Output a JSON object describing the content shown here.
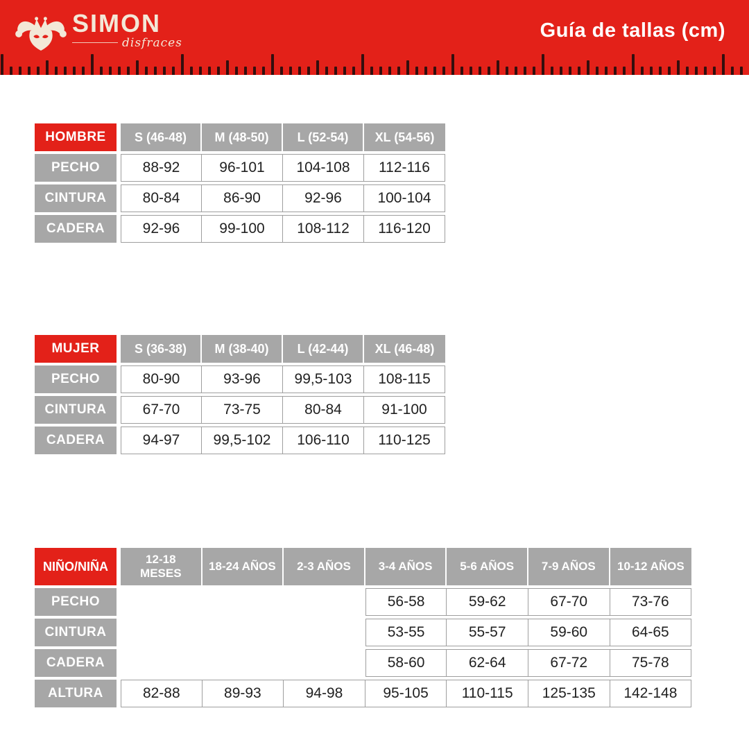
{
  "header": {
    "brand": {
      "name": "SIMON",
      "tagline": "disfraces"
    },
    "title": "Guía de tallas (cm)"
  },
  "colors": {
    "brand_red": "#e32119",
    "header_gray": "#a7a7a7",
    "cell_border": "#9e9e9e",
    "logo_cream": "#f3e8d7",
    "ruler_tick": "#330f0e",
    "data_text": "#212121"
  },
  "tables": [
    {
      "label": "HOMBRE",
      "columns": [
        "S (46-48)",
        "M (48-50)",
        "L (52-54)",
        "XL (54-56)"
      ],
      "rows": [
        {
          "label": "PECHO",
          "values": [
            "88-92",
            "96-101",
            "104-108",
            "112-116"
          ]
        },
        {
          "label": "CINTURA",
          "values": [
            "80-84",
            "86-90",
            "92-96",
            "100-104"
          ]
        },
        {
          "label": "CADERA",
          "values": [
            "92-96",
            "99-100",
            "108-112",
            "116-120"
          ]
        }
      ]
    },
    {
      "label": "MUJER",
      "columns": [
        "S (36-38)",
        "M (38-40)",
        "L (42-44)",
        "XL (46-48)"
      ],
      "rows": [
        {
          "label": "PECHO",
          "values": [
            "80-90",
            "93-96",
            "99,5-103",
            "108-115"
          ]
        },
        {
          "label": "CINTURA",
          "values": [
            "67-70",
            "73-75",
            "80-84",
            "91-100"
          ]
        },
        {
          "label": "CADERA",
          "values": [
            "94-97",
            "99,5-102",
            "106-110",
            "110-125"
          ]
        }
      ]
    },
    {
      "label": "NIÑO/NIÑA",
      "columns": [
        "12-18\nMESES",
        "18-24 AÑOS",
        "2-3 AÑOS",
        "3-4 AÑOS",
        "5-6 AÑOS",
        "7-9 AÑOS",
        "10-12 AÑOS"
      ],
      "empty_cols": 3,
      "empty_rows": 3,
      "rows": [
        {
          "label": "PECHO",
          "values": [
            null,
            null,
            null,
            "56-58",
            "59-62",
            "67-70",
            "73-76"
          ]
        },
        {
          "label": "CINTURA",
          "values": [
            null,
            null,
            null,
            "53-55",
            "55-57",
            "59-60",
            "64-65"
          ]
        },
        {
          "label": "CADERA",
          "values": [
            null,
            null,
            null,
            "58-60",
            "62-64",
            "67-72",
            "75-78"
          ]
        },
        {
          "label": "ALTURA",
          "values": [
            "82-88",
            "89-93",
            "94-98",
            "95-105",
            "110-115",
            "125-135",
            "142-148"
          ]
        }
      ]
    }
  ]
}
